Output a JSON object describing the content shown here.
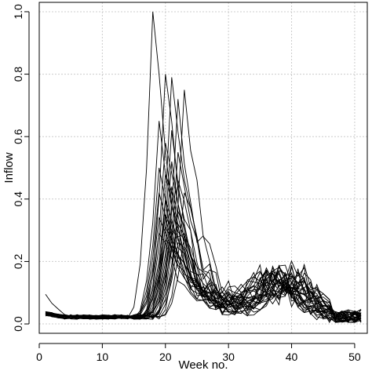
{
  "chart_data": {
    "type": "line",
    "title": "",
    "xlabel": "Week no.",
    "ylabel": "Inflow",
    "xlim": [
      0,
      52
    ],
    "ylim": [
      -0.03,
      1.03
    ],
    "x_ticks": [
      0,
      10,
      20,
      30,
      40,
      50
    ],
    "y_ticks": [
      0.0,
      0.2,
      0.4,
      0.6,
      0.8,
      1.0
    ],
    "x_tick_labels": [
      "0",
      "10",
      "20",
      "30",
      "40",
      "50"
    ],
    "y_tick_labels": [
      "0.0",
      "0.2",
      "0.4",
      "0.6",
      "0.8",
      "1.0"
    ],
    "grid": true,
    "legend": "none",
    "line_color": "#000000",
    "grid_color": "#cccccc",
    "x": [
      1,
      2,
      3,
      4,
      5,
      6,
      7,
      8,
      9,
      10,
      11,
      12,
      13,
      14,
      15,
      16,
      17,
      18,
      19,
      20,
      21,
      22,
      23,
      24,
      25,
      26,
      27,
      28,
      29,
      30,
      31,
      32,
      33,
      34,
      35,
      36,
      37,
      38,
      39,
      40,
      41,
      42,
      43,
      44,
      45,
      46,
      47,
      48,
      49,
      50,
      51
    ],
    "series_peaks": [
      {
        "peak_week": 18,
        "peak": 1.0
      },
      {
        "peak_week": 20,
        "peak": 0.8
      },
      {
        "peak_week": 21,
        "peak": 0.79
      },
      {
        "peak_week": 23,
        "peak": 0.75
      },
      {
        "peak_week": 22,
        "peak": 0.72
      },
      {
        "peak_week": 19,
        "peak": 0.65
      },
      {
        "peak_week": 21,
        "peak": 0.62
      },
      {
        "peak_week": 20,
        "peak": 0.58
      },
      {
        "peak_week": 22,
        "peak": 0.55
      },
      {
        "peak_week": 21,
        "peak": 0.52
      },
      {
        "peak_week": 19,
        "peak": 0.5
      },
      {
        "peak_week": 20,
        "peak": 0.48
      },
      {
        "peak_week": 22,
        "peak": 0.46
      },
      {
        "peak_week": 21,
        "peak": 0.44
      },
      {
        "peak_week": 19,
        "peak": 0.42
      },
      {
        "peak_week": 23,
        "peak": 0.42
      },
      {
        "peak_week": 20,
        "peak": 0.4
      },
      {
        "peak_week": 21,
        "peak": 0.38
      },
      {
        "peak_week": 22,
        "peak": 0.36
      },
      {
        "peak_week": 20,
        "peak": 0.35
      },
      {
        "peak_week": 19,
        "peak": 0.34
      },
      {
        "peak_week": 21,
        "peak": 0.33
      },
      {
        "peak_week": 22,
        "peak": 0.32
      },
      {
        "peak_week": 20,
        "peak": 0.31
      },
      {
        "peak_week": 21,
        "peak": 0.3
      },
      {
        "peak_week": 19,
        "peak": 0.29
      },
      {
        "peak_week": 23,
        "peak": 0.28
      },
      {
        "peak_week": 20,
        "peak": 0.27
      },
      {
        "peak_week": 22,
        "peak": 0.26
      },
      {
        "peak_week": 21,
        "peak": 0.25
      }
    ]
  }
}
